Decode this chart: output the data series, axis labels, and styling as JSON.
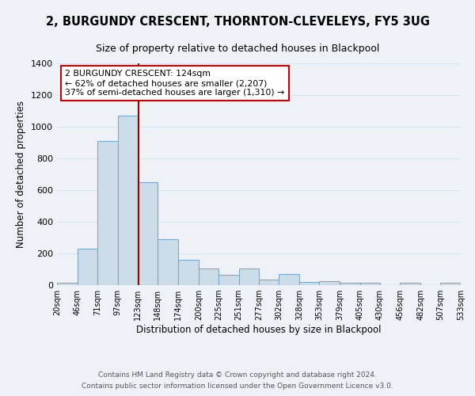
{
  "title": "2, BURGUNDY CRESCENT, THORNTON-CLEVELEYS, FY5 3UG",
  "subtitle": "Size of property relative to detached houses in Blackpool",
  "xlabel": "Distribution of detached houses by size in Blackpool",
  "ylabel": "Number of detached properties",
  "bar_color": "#ccdce8",
  "bar_edge_color": "#7aaac8",
  "background_color": "#eef2f7",
  "grid_color": "#d8e4ee",
  "ylim": [
    0,
    1400
  ],
  "yticks": [
    0,
    200,
    400,
    600,
    800,
    1000,
    1200,
    1400
  ],
  "bins": [
    20,
    46,
    71,
    97,
    123,
    148,
    174,
    200,
    225,
    251,
    277,
    302,
    328,
    353,
    379,
    405,
    430,
    456,
    482,
    507,
    533
  ],
  "bin_labels": [
    "20sqm",
    "46sqm",
    "71sqm",
    "97sqm",
    "123sqm",
    "148sqm",
    "174sqm",
    "200sqm",
    "225sqm",
    "251sqm",
    "277sqm",
    "302sqm",
    "328sqm",
    "353sqm",
    "379sqm",
    "405sqm",
    "430sqm",
    "456sqm",
    "482sqm",
    "507sqm",
    "533sqm"
  ],
  "heights": [
    15,
    230,
    910,
    1070,
    650,
    290,
    160,
    105,
    65,
    105,
    35,
    70,
    20,
    25,
    15,
    15,
    0,
    15,
    0,
    15
  ],
  "property_value": 124,
  "vline_color": "#990000",
  "annotation_title": "2 BURGUNDY CRESCENT: 124sqm",
  "annotation_line1": "← 62% of detached houses are smaller (2,207)",
  "annotation_line2": "37% of semi-detached houses are larger (1,310) →",
  "annotation_box_color": "#ffffff",
  "annotation_box_edge": "#cc0000",
  "footer1": "Contains HM Land Registry data © Crown copyright and database right 2024.",
  "footer2": "Contains public sector information licensed under the Open Government Licence v3.0."
}
